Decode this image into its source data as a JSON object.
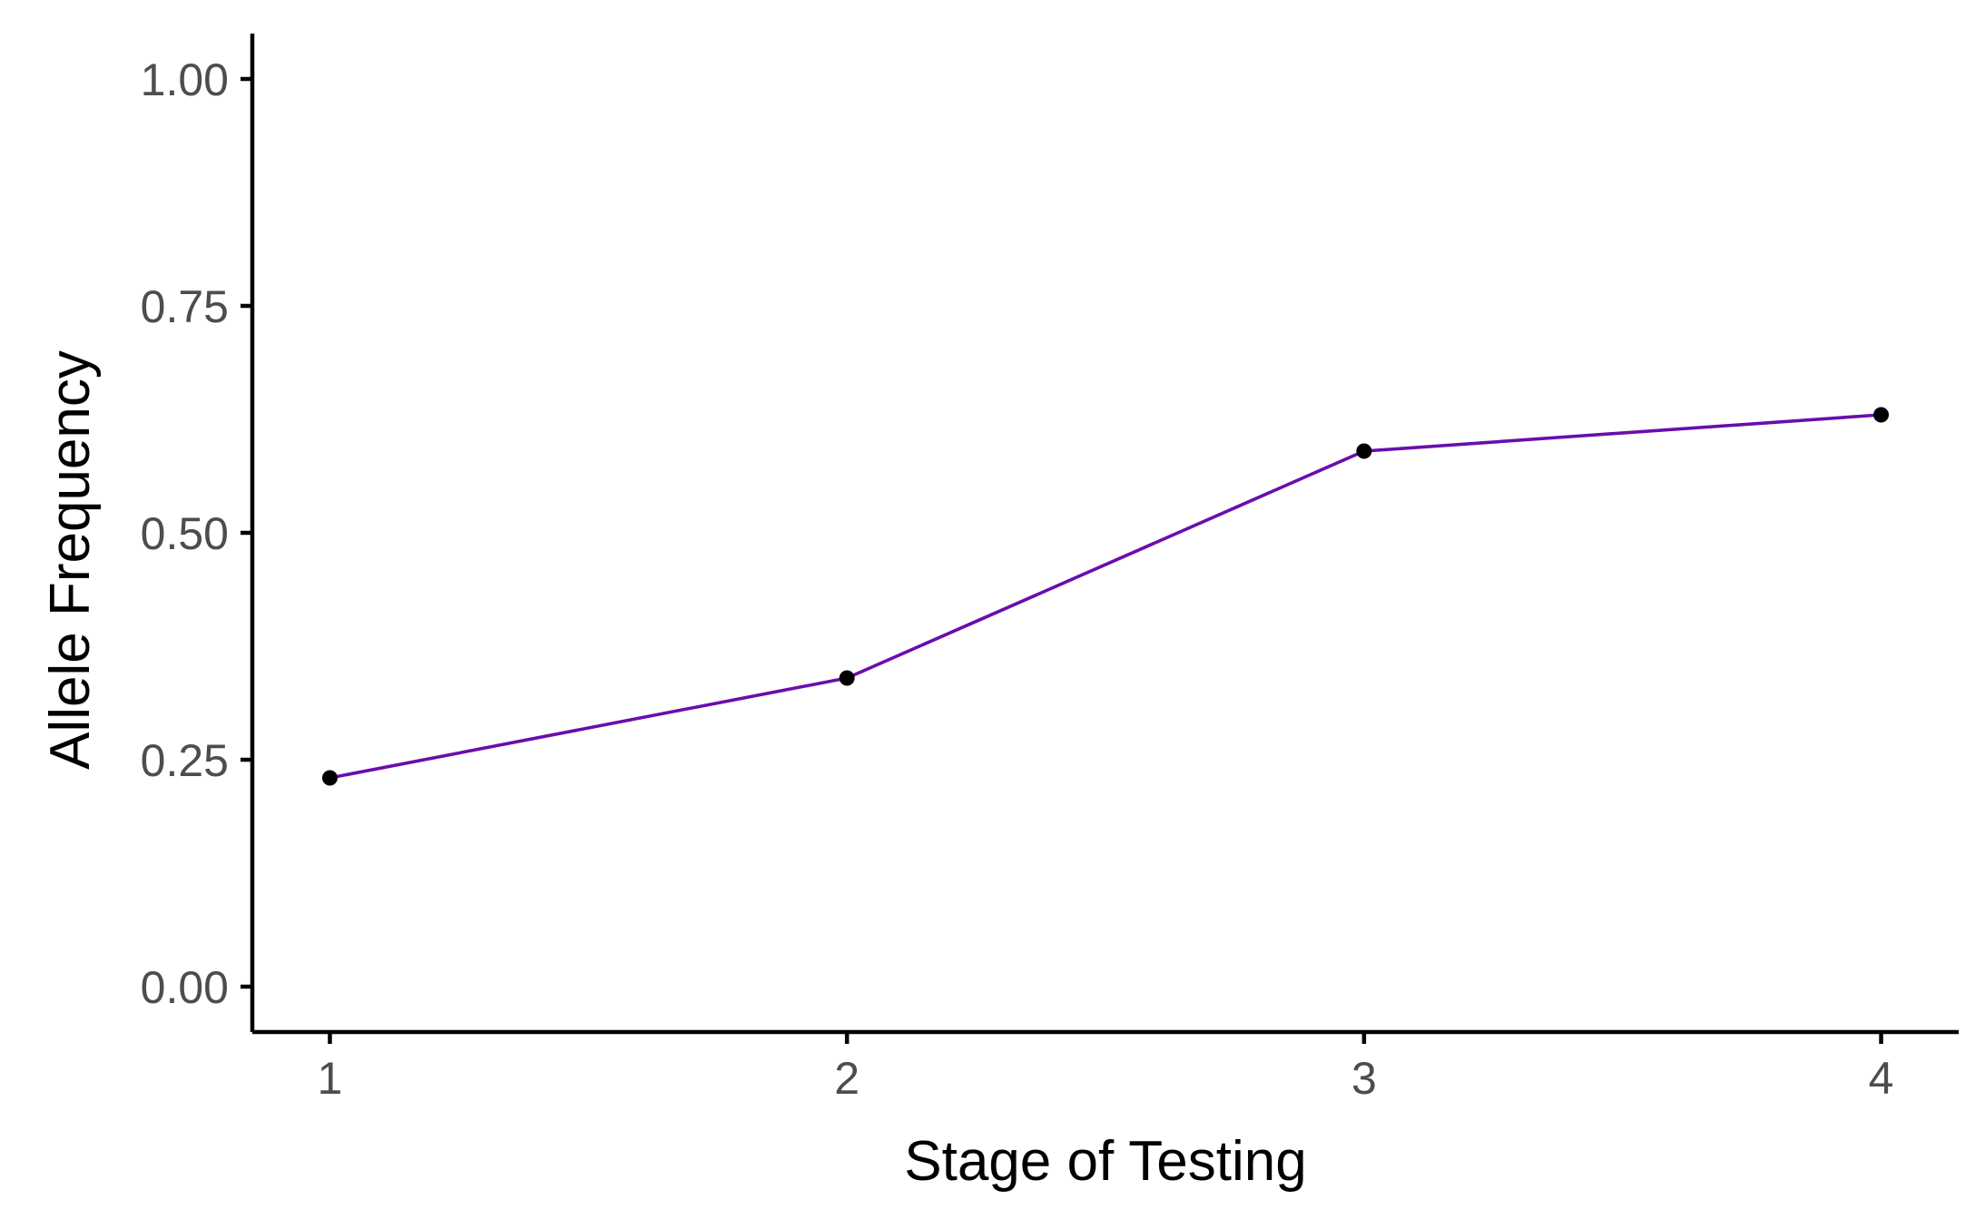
{
  "chart_data": {
    "type": "line",
    "xlabel": "Stage of Testing",
    "ylabel": "Allele Frequency",
    "x": [
      1,
      2,
      3,
      4
    ],
    "x_tick_labels": [
      "1",
      "2",
      "3",
      "4"
    ],
    "y_ticks": [
      0.0,
      0.25,
      0.5,
      0.75,
      1.0
    ],
    "y_tick_labels": [
      "0.00",
      "0.25",
      "0.50",
      "0.75",
      "1.00"
    ],
    "xlim": [
      0.85,
      4.15
    ],
    "ylim": [
      -0.05,
      1.05
    ],
    "series": [
      {
        "values": [
          0.23,
          0.34,
          0.59,
          0.63
        ],
        "line_color": "#6a0dad",
        "point_color": "#000000"
      }
    ],
    "grid": false,
    "legend": "none"
  }
}
